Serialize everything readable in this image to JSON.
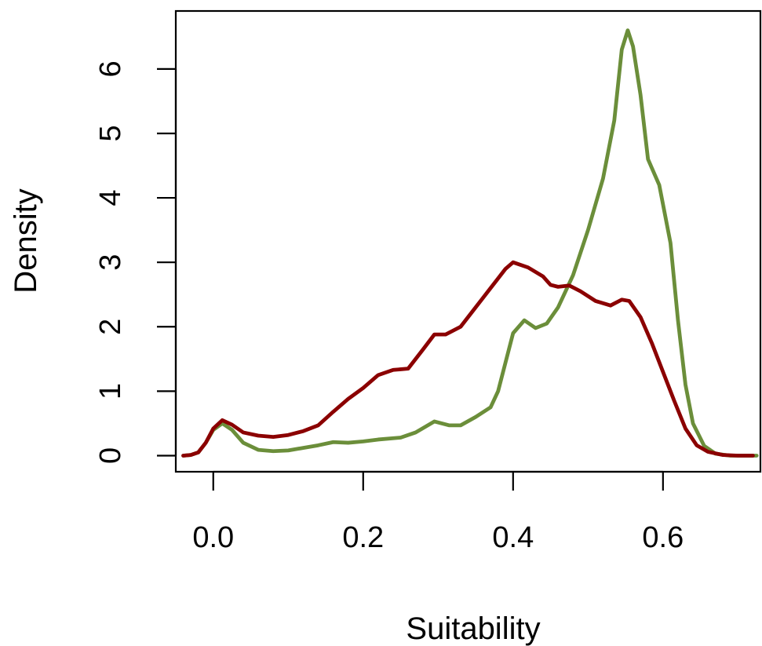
{
  "chart_data": {
    "type": "line",
    "title": "",
    "xlabel": "Suitability",
    "ylabel": "Density",
    "xlim": [
      -0.05,
      0.73
    ],
    "ylim": [
      -0.25,
      6.9
    ],
    "x_ticks": [
      0.0,
      0.2,
      0.4,
      0.6
    ],
    "x_tick_labels": [
      "0.0",
      "0.2",
      "0.4",
      "0.6"
    ],
    "y_ticks": [
      0,
      1,
      2,
      3,
      4,
      5,
      6
    ],
    "y_tick_labels": [
      "0",
      "1",
      "2",
      "3",
      "4",
      "5",
      "6"
    ],
    "grid": false,
    "series": [
      {
        "color": "#6b8e3a",
        "points": [
          [
            -0.04,
            0.0
          ],
          [
            -0.03,
            0.01
          ],
          [
            -0.02,
            0.05
          ],
          [
            -0.01,
            0.2
          ],
          [
            0.0,
            0.4
          ],
          [
            0.012,
            0.5
          ],
          [
            0.025,
            0.4
          ],
          [
            0.04,
            0.2
          ],
          [
            0.06,
            0.09
          ],
          [
            0.08,
            0.07
          ],
          [
            0.1,
            0.08
          ],
          [
            0.12,
            0.12
          ],
          [
            0.14,
            0.16
          ],
          [
            0.16,
            0.21
          ],
          [
            0.18,
            0.2
          ],
          [
            0.2,
            0.22
          ],
          [
            0.22,
            0.25
          ],
          [
            0.25,
            0.28
          ],
          [
            0.27,
            0.36
          ],
          [
            0.295,
            0.53
          ],
          [
            0.315,
            0.47
          ],
          [
            0.33,
            0.47
          ],
          [
            0.35,
            0.6
          ],
          [
            0.37,
            0.75
          ],
          [
            0.38,
            1.0
          ],
          [
            0.39,
            1.45
          ],
          [
            0.4,
            1.9
          ],
          [
            0.415,
            2.1
          ],
          [
            0.43,
            1.98
          ],
          [
            0.445,
            2.05
          ],
          [
            0.46,
            2.3
          ],
          [
            0.48,
            2.8
          ],
          [
            0.5,
            3.5
          ],
          [
            0.52,
            4.3
          ],
          [
            0.535,
            5.2
          ],
          [
            0.545,
            6.3
          ],
          [
            0.553,
            6.6
          ],
          [
            0.56,
            6.35
          ],
          [
            0.57,
            5.6
          ],
          [
            0.58,
            4.6
          ],
          [
            0.595,
            4.2
          ],
          [
            0.61,
            3.3
          ],
          [
            0.62,
            2.1
          ],
          [
            0.63,
            1.1
          ],
          [
            0.64,
            0.5
          ],
          [
            0.655,
            0.15
          ],
          [
            0.67,
            0.03
          ],
          [
            0.69,
            0.0
          ],
          [
            0.71,
            0.0
          ],
          [
            0.725,
            0.0
          ]
        ]
      },
      {
        "color": "#8b0000",
        "points": [
          [
            -0.04,
            0.0
          ],
          [
            -0.03,
            0.01
          ],
          [
            -0.02,
            0.05
          ],
          [
            -0.01,
            0.2
          ],
          [
            0.0,
            0.42
          ],
          [
            0.012,
            0.55
          ],
          [
            0.025,
            0.48
          ],
          [
            0.04,
            0.36
          ],
          [
            0.06,
            0.31
          ],
          [
            0.08,
            0.29
          ],
          [
            0.1,
            0.32
          ],
          [
            0.12,
            0.38
          ],
          [
            0.14,
            0.47
          ],
          [
            0.16,
            0.68
          ],
          [
            0.18,
            0.88
          ],
          [
            0.2,
            1.05
          ],
          [
            0.22,
            1.25
          ],
          [
            0.24,
            1.33
          ],
          [
            0.26,
            1.35
          ],
          [
            0.28,
            1.65
          ],
          [
            0.295,
            1.88
          ],
          [
            0.31,
            1.88
          ],
          [
            0.33,
            2.0
          ],
          [
            0.35,
            2.3
          ],
          [
            0.37,
            2.6
          ],
          [
            0.39,
            2.9
          ],
          [
            0.4,
            3.0
          ],
          [
            0.42,
            2.92
          ],
          [
            0.44,
            2.78
          ],
          [
            0.45,
            2.65
          ],
          [
            0.46,
            2.62
          ],
          [
            0.475,
            2.64
          ],
          [
            0.49,
            2.55
          ],
          [
            0.51,
            2.4
          ],
          [
            0.53,
            2.33
          ],
          [
            0.545,
            2.42
          ],
          [
            0.555,
            2.4
          ],
          [
            0.57,
            2.15
          ],
          [
            0.585,
            1.75
          ],
          [
            0.6,
            1.3
          ],
          [
            0.615,
            0.85
          ],
          [
            0.63,
            0.42
          ],
          [
            0.645,
            0.16
          ],
          [
            0.66,
            0.06
          ],
          [
            0.68,
            0.01
          ],
          [
            0.7,
            0.0
          ],
          [
            0.72,
            0.0
          ]
        ]
      }
    ]
  }
}
